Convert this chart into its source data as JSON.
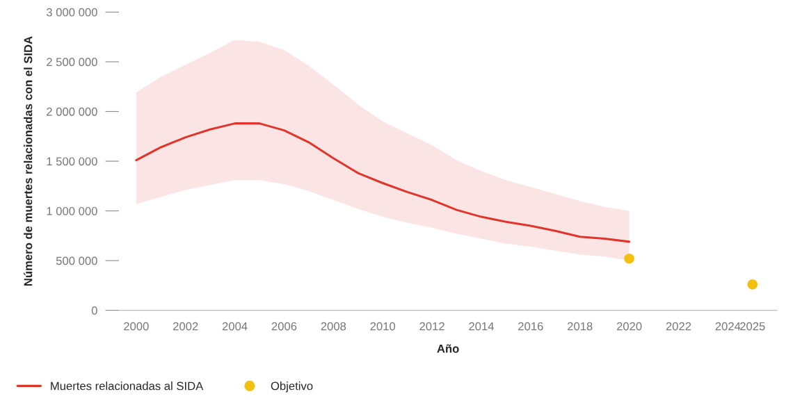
{
  "chart_data": {
    "type": "line",
    "xlabel": "Año",
    "ylabel": "Número de muertes relacionadas con el SIDA",
    "series": [
      {
        "name": "Muertes relacionadas al SIDA",
        "color": "#e0352b",
        "x": [
          2000,
          2001,
          2002,
          2003,
          2004,
          2005,
          2006,
          2007,
          2008,
          2009,
          2010,
          2011,
          2012,
          2013,
          2014,
          2015,
          2016,
          2017,
          2018,
          2019,
          2020
        ],
        "values": [
          1510000,
          1640000,
          1740000,
          1820000,
          1880000,
          1880000,
          1810000,
          1690000,
          1530000,
          1380000,
          1280000,
          1190000,
          1110000,
          1010000,
          940000,
          890000,
          850000,
          800000,
          740000,
          720000,
          690000
        ],
        "upper": [
          2190000,
          2350000,
          2470000,
          2590000,
          2720000,
          2700000,
          2620000,
          2460000,
          2270000,
          2070000,
          1900000,
          1780000,
          1660000,
          1510000,
          1400000,
          1310000,
          1240000,
          1170000,
          1100000,
          1040000,
          1000000
        ],
        "lower": [
          1070000,
          1140000,
          1210000,
          1260000,
          1310000,
          1310000,
          1270000,
          1200000,
          1110000,
          1020000,
          940000,
          880000,
          830000,
          770000,
          720000,
          670000,
          640000,
          600000,
          560000,
          540000,
          500000
        ]
      },
      {
        "name": "Objetivo",
        "type": "scatter",
        "color": "#f2c110",
        "x": [
          2020,
          2025
        ],
        "values": [
          520000,
          260000
        ]
      }
    ],
    "xlim": [
      1999.3,
      2026
    ],
    "xticks": [
      2000,
      2002,
      2004,
      2006,
      2008,
      2010,
      2012,
      2014,
      2016,
      2018,
      2020,
      2022,
      2024,
      2025
    ],
    "ylim": [
      0,
      3000000
    ],
    "yticks": [
      {
        "value": 0,
        "label": "0"
      },
      {
        "value": 500000,
        "label": "500 000"
      },
      {
        "value": 1000000,
        "label": "1 000 000"
      },
      {
        "value": 1500000,
        "label": "1 500 000"
      },
      {
        "value": 2000000,
        "label": "2 000 000"
      },
      {
        "value": 2500000,
        "label": "2 500 000"
      },
      {
        "value": 3000000,
        "label": "3 000 000"
      }
    ],
    "grid": false,
    "legend": "bottom left"
  }
}
